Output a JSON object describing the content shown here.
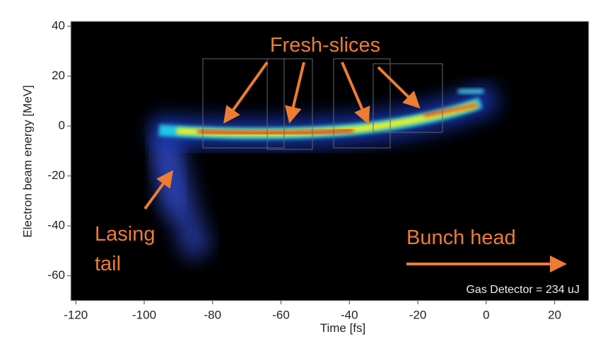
{
  "chart_data": {
    "type": "image",
    "x_label": "Time [fs]",
    "y_label": "Electron beam energy [MeV]",
    "xlim": [
      -121.5,
      30
    ],
    "ylim": [
      -70,
      42
    ],
    "xticks": [
      -120,
      -100,
      -80,
      -60,
      -40,
      -20,
      0,
      20
    ],
    "yticks": [
      -60,
      -40,
      -20,
      0,
      20,
      40
    ],
    "annotations": [
      "Fresh-slices",
      "Lasing",
      "tail",
      "Bunch head",
      "Gas Detector = 234 uJ"
    ]
  }
}
